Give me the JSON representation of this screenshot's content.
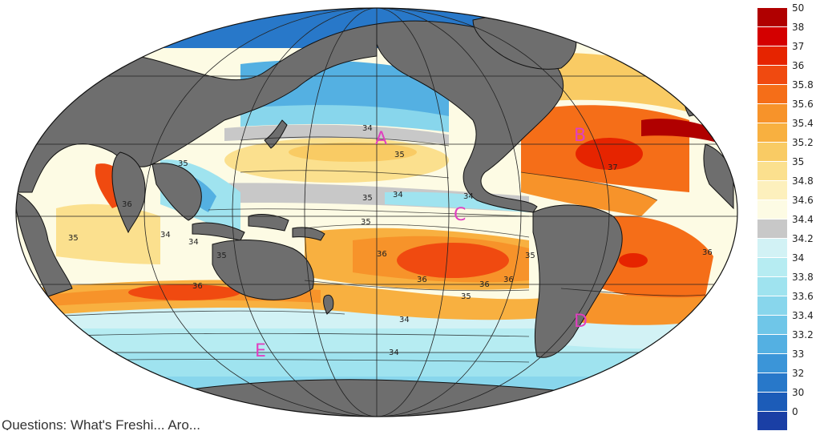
{
  "caption": "Questions: What's Freshi... Aro...",
  "region_labels": [
    {
      "id": "A",
      "text": "A"
    },
    {
      "id": "B",
      "text": "B"
    },
    {
      "id": "C",
      "text": "C"
    },
    {
      "id": "D",
      "text": "D"
    },
    {
      "id": "E",
      "text": "E"
    }
  ],
  "contour_labels": [
    "34",
    "35",
    "35",
    "34",
    "35",
    "34",
    "35",
    "36",
    "36",
    "35",
    "36",
    "34",
    "34",
    "35",
    "36",
    "35",
    "34",
    "34",
    "36",
    "35",
    "36",
    "37",
    "36"
  ],
  "colorbar": {
    "levels": [
      "50",
      "38",
      "37",
      "36",
      "35.8",
      "35.6",
      "35.4",
      "35.2",
      "35",
      "34.8",
      "34.6",
      "34.4",
      "34.2",
      "34",
      "33.8",
      "33.6",
      "33.4",
      "33.2",
      "33",
      "32",
      "30",
      "0"
    ],
    "colors": [
      "#b00000",
      "#d40000",
      "#e62400",
      "#f04a10",
      "#f56e18",
      "#f7932a",
      "#f8b040",
      "#f9cb64",
      "#fbe08e",
      "#fdf0bd",
      "#fdfbe4",
      "#c8c8c8",
      "#d2f2f5",
      "#b6ecf2",
      "#9fe3ef",
      "#88d6ec",
      "#6fc6e8",
      "#54b0e2",
      "#3b95d8",
      "#2878c9",
      "#1c5cb8",
      "#1a3fa5"
    ]
  },
  "colors": {
    "land": "#6e6e6e",
    "background": "#ffffff",
    "grid": "#222222",
    "labels": "#e040c0"
  }
}
